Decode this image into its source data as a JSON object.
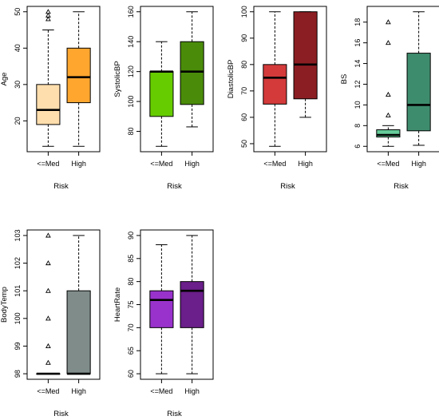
{
  "chart_data": [
    {
      "type": "boxplot",
      "ylabel": "Age",
      "xlabel": "Risk",
      "categories": [
        "<=Med",
        "High"
      ],
      "ylim": [
        13,
        50
      ],
      "yticks": [
        20,
        30,
        40,
        50
      ],
      "boxes": [
        {
          "min": 13,
          "q1": 19,
          "median": 23,
          "q3": 30,
          "max": 45,
          "outliers": [
            48,
            49,
            50
          ],
          "color": "#FFDEAD"
        },
        {
          "min": 13,
          "q1": 25,
          "median": 32,
          "q3": 40,
          "max": 50,
          "outliers": [],
          "color": "#FFA62F"
        }
      ]
    },
    {
      "type": "boxplot",
      "ylabel": "SystolicBP",
      "xlabel": "Risk",
      "categories": [
        "<=Med",
        "High"
      ],
      "ylim": [
        70,
        160
      ],
      "yticks": [
        80,
        100,
        120,
        140,
        160
      ],
      "boxes": [
        {
          "min": 70,
          "q1": 90,
          "median": 120,
          "q3": 120,
          "max": 140,
          "outliers": [],
          "color": "#66CC00"
        },
        {
          "min": 83,
          "q1": 98,
          "median": 120,
          "q3": 140,
          "max": 160,
          "outliers": [],
          "color": "#4A8C0A"
        }
      ]
    },
    {
      "type": "boxplot",
      "ylabel": "DiastolicBP",
      "xlabel": "Risk",
      "categories": [
        "<=Med",
        "High"
      ],
      "ylim": [
        49,
        100
      ],
      "yticks": [
        50,
        60,
        70,
        80,
        90,
        100
      ],
      "boxes": [
        {
          "min": 49,
          "q1": 65,
          "median": 75,
          "q3": 80,
          "max": 100,
          "outliers": [],
          "color": "#D43A3A"
        },
        {
          "min": 60,
          "q1": 67,
          "median": 80,
          "q3": 100,
          "max": 100,
          "outliers": [],
          "color": "#8B1E22"
        }
      ]
    },
    {
      "type": "boxplot",
      "ylabel": "BS",
      "xlabel": "Risk",
      "categories": [
        "<=Med",
        "High"
      ],
      "ylim": [
        6,
        19
      ],
      "yticks": [
        6,
        8,
        10,
        12,
        14,
        16,
        18
      ],
      "boxes": [
        {
          "min": 6,
          "q1": 6.9,
          "median": 7.1,
          "q3": 7.6,
          "max": 8,
          "outliers": [
            9,
            11,
            16,
            18
          ],
          "color": "#66CC99"
        },
        {
          "min": 6.1,
          "q1": 7.5,
          "median": 10,
          "q3": 15,
          "max": 19,
          "outliers": [],
          "color": "#3E8C6E"
        }
      ]
    },
    {
      "type": "boxplot",
      "ylabel": "BodyTemp",
      "xlabel": "Risk",
      "categories": [
        "<=Med",
        "High"
      ],
      "ylim": [
        98,
        103
      ],
      "yticks": [
        98,
        99,
        100,
        101,
        102,
        103
      ],
      "boxes": [
        {
          "min": 98,
          "q1": 98,
          "median": 98,
          "q3": 98,
          "max": 98,
          "outliers": [
            98.4,
            99,
            100,
            101,
            102,
            103
          ],
          "color": "#B0C4DE"
        },
        {
          "min": 98,
          "q1": 98,
          "median": 98,
          "q3": 101,
          "max": 103,
          "outliers": [],
          "color": "#7F8C8A"
        }
      ]
    },
    {
      "type": "boxplot",
      "ylabel": "HeartRate",
      "xlabel": "Risk",
      "categories": [
        "<=Med",
        "High"
      ],
      "ylim": [
        60,
        90
      ],
      "yticks": [
        60,
        65,
        70,
        75,
        80,
        85,
        90
      ],
      "boxes": [
        {
          "min": 60,
          "q1": 70,
          "median": 76,
          "q3": 78,
          "max": 88,
          "outliers": [],
          "color": "#9932CC"
        },
        {
          "min": 60,
          "q1": 70,
          "median": 78,
          "q3": 80,
          "max": 90,
          "outliers": [],
          "color": "#6A1F8A"
        }
      ]
    }
  ]
}
